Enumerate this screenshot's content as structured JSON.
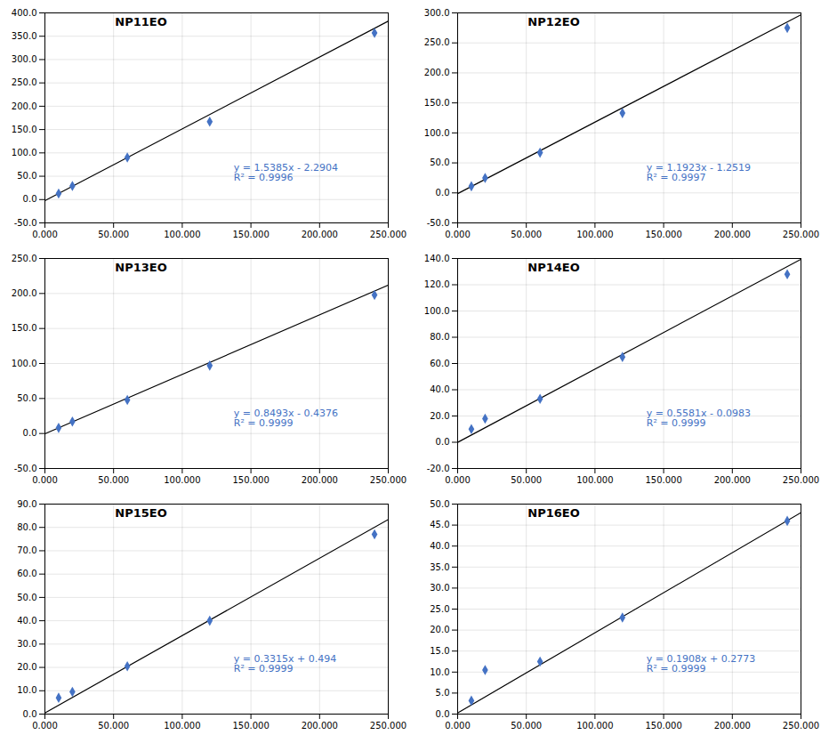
{
  "chart_data": [
    {
      "type": "scatter",
      "title": "NP11EO",
      "grid": true,
      "xlim": [
        0,
        250
      ],
      "xticks": [
        {
          "value": 0,
          "label": "0.000"
        },
        {
          "value": 50,
          "label": "50.000"
        },
        {
          "value": 100,
          "label": "100.000"
        },
        {
          "value": 150,
          "label": "150.000"
        },
        {
          "value": 200,
          "label": "200.000"
        },
        {
          "value": 250,
          "label": "250.000"
        }
      ],
      "ylim": [
        -50,
        400
      ],
      "yticks": [
        {
          "value": -50,
          "label": "-50.0"
        },
        {
          "value": 0,
          "label": "0.0"
        },
        {
          "value": 50,
          "label": "50.0"
        },
        {
          "value": 100,
          "label": "100.0"
        },
        {
          "value": 150,
          "label": "150.0"
        },
        {
          "value": 200,
          "label": "200.0"
        },
        {
          "value": 250,
          "label": "250.0"
        },
        {
          "value": 300,
          "label": "300.0"
        },
        {
          "value": 350,
          "label": "350.0"
        },
        {
          "value": 400,
          "label": "400.0"
        }
      ],
      "annotations": [
        "y = 1.5385x - 2.2904",
        "R² = 0.9996"
      ],
      "series": [
        {
          "type": "line",
          "color": "#000000",
          "line_style": "solid",
          "x": [
            0,
            250
          ],
          "values": [
            -2.2904,
            382.3346
          ]
        },
        {
          "type": "scatter",
          "color": "#4472C4",
          "marker": "diamond",
          "x": [
            10,
            20,
            60,
            120,
            240
          ],
          "values": [
            13,
            29,
            90,
            167,
            357
          ]
        }
      ]
    },
    {
      "type": "scatter",
      "title": "NP12EO",
      "grid": true,
      "xlim": [
        0,
        250
      ],
      "xticks": [
        {
          "value": 0,
          "label": "0.000"
        },
        {
          "value": 50,
          "label": "50.000"
        },
        {
          "value": 100,
          "label": "100.000"
        },
        {
          "value": 150,
          "label": "150.000"
        },
        {
          "value": 200,
          "label": "200.000"
        },
        {
          "value": 250,
          "label": "250.000"
        }
      ],
      "ylim": [
        -50,
        300
      ],
      "yticks": [
        {
          "value": -50,
          "label": "-50.0"
        },
        {
          "value": 0,
          "label": "0.0"
        },
        {
          "value": 50,
          "label": "50.0"
        },
        {
          "value": 100,
          "label": "100.0"
        },
        {
          "value": 150,
          "label": "150.0"
        },
        {
          "value": 200,
          "label": "200.0"
        },
        {
          "value": 250,
          "label": "250.0"
        },
        {
          "value": 300,
          "label": "300.0"
        }
      ],
      "annotations": [
        "y = 1.1923x - 1.2519",
        "R² = 0.9997"
      ],
      "series": [
        {
          "type": "line",
          "color": "#000000",
          "line_style": "solid",
          "x": [
            0,
            250
          ],
          "values": [
            -1.2519,
            296.8231
          ]
        },
        {
          "type": "scatter",
          "color": "#4472C4",
          "marker": "diamond",
          "x": [
            10,
            20,
            60,
            120,
            240
          ],
          "values": [
            11,
            25,
            67,
            133,
            275
          ]
        }
      ]
    },
    {
      "type": "scatter",
      "title": "NP13EO",
      "grid": true,
      "xlim": [
        0,
        250
      ],
      "xticks": [
        {
          "value": 0,
          "label": "0.000"
        },
        {
          "value": 50,
          "label": "50.000"
        },
        {
          "value": 100,
          "label": "100.000"
        },
        {
          "value": 150,
          "label": "150.000"
        },
        {
          "value": 200,
          "label": "200.000"
        },
        {
          "value": 250,
          "label": "250.000"
        }
      ],
      "ylim": [
        -50,
        250
      ],
      "yticks": [
        {
          "value": -50,
          "label": "-50.0"
        },
        {
          "value": 0,
          "label": "0.0"
        },
        {
          "value": 50,
          "label": "50.0"
        },
        {
          "value": 100,
          "label": "100.0"
        },
        {
          "value": 150,
          "label": "150.0"
        },
        {
          "value": 200,
          "label": "200.0"
        },
        {
          "value": 250,
          "label": "250.0"
        }
      ],
      "annotations": [
        "y = 0.8493x - 0.4376",
        "R² = 0.9999"
      ],
      "series": [
        {
          "type": "line",
          "color": "#000000",
          "line_style": "solid",
          "x": [
            0,
            250
          ],
          "values": [
            -0.4376,
            211.8874
          ]
        },
        {
          "type": "scatter",
          "color": "#4472C4",
          "marker": "diamond",
          "x": [
            10,
            20,
            60,
            120,
            240
          ],
          "values": [
            8,
            17,
            48,
            97,
            198
          ]
        }
      ]
    },
    {
      "type": "scatter",
      "title": "NP14EO",
      "grid": true,
      "xlim": [
        0,
        250
      ],
      "xticks": [
        {
          "value": 0,
          "label": "0.000"
        },
        {
          "value": 50,
          "label": "50.000"
        },
        {
          "value": 100,
          "label": "100.000"
        },
        {
          "value": 150,
          "label": "150.000"
        },
        {
          "value": 200,
          "label": "200.000"
        },
        {
          "value": 250,
          "label": "250.000"
        }
      ],
      "ylim": [
        -20,
        140
      ],
      "yticks": [
        {
          "value": -20,
          "label": "-20.0"
        },
        {
          "value": 0,
          "label": "0.0"
        },
        {
          "value": 20,
          "label": "20.0"
        },
        {
          "value": 40,
          "label": "40.0"
        },
        {
          "value": 60,
          "label": "60.0"
        },
        {
          "value": 80,
          "label": "80.0"
        },
        {
          "value": 100,
          "label": "100.0"
        },
        {
          "value": 120,
          "label": "120.0"
        },
        {
          "value": 140,
          "label": "140.0"
        }
      ],
      "annotations": [
        "y = 0.5581x - 0.0983",
        "R² = 0.9999"
      ],
      "series": [
        {
          "type": "line",
          "color": "#000000",
          "line_style": "solid",
          "x": [
            0,
            250
          ],
          "values": [
            -0.0983,
            139.4267
          ]
        },
        {
          "type": "scatter",
          "color": "#4472C4",
          "marker": "diamond",
          "x": [
            10,
            20,
            60,
            120,
            240
          ],
          "values": [
            10,
            18,
            33,
            65,
            128
          ]
        }
      ]
    },
    {
      "type": "scatter",
      "title": "NP15EO",
      "grid": true,
      "xlim": [
        0,
        250
      ],
      "xticks": [
        {
          "value": 0,
          "label": "0.000"
        },
        {
          "value": 50,
          "label": "50.000"
        },
        {
          "value": 100,
          "label": "100.000"
        },
        {
          "value": 150,
          "label": "150.000"
        },
        {
          "value": 200,
          "label": "200.000"
        },
        {
          "value": 250,
          "label": "250.000"
        }
      ],
      "ylim": [
        0,
        90
      ],
      "yticks": [
        {
          "value": 0,
          "label": "0.0"
        },
        {
          "value": 10,
          "label": "10.0"
        },
        {
          "value": 20,
          "label": "20.0"
        },
        {
          "value": 30,
          "label": "30.0"
        },
        {
          "value": 40,
          "label": "40.0"
        },
        {
          "value": 50,
          "label": "50.0"
        },
        {
          "value": 60,
          "label": "60.0"
        },
        {
          "value": 70,
          "label": "70.0"
        },
        {
          "value": 80,
          "label": "80.0"
        },
        {
          "value": 90,
          "label": "90.0"
        }
      ],
      "annotations": [
        "y = 0.3315x + 0.494",
        "R² = 0.9999"
      ],
      "series": [
        {
          "type": "line",
          "color": "#000000",
          "line_style": "solid",
          "x": [
            0,
            250
          ],
          "values": [
            0.494,
            83.369
          ]
        },
        {
          "type": "scatter",
          "color": "#4472C4",
          "marker": "diamond",
          "x": [
            10,
            20,
            60,
            120,
            240
          ],
          "values": [
            7,
            9.5,
            20.5,
            40,
            77
          ]
        }
      ]
    },
    {
      "type": "scatter",
      "title": "NP16EO",
      "grid": true,
      "xlim": [
        0,
        250
      ],
      "xticks": [
        {
          "value": 0,
          "label": "0.000"
        },
        {
          "value": 50,
          "label": "50.000"
        },
        {
          "value": 100,
          "label": "100.000"
        },
        {
          "value": 150,
          "label": "150.000"
        },
        {
          "value": 200,
          "label": "200.000"
        },
        {
          "value": 250,
          "label": "250.000"
        }
      ],
      "ylim": [
        0,
        50
      ],
      "yticks": [
        {
          "value": 0,
          "label": "0.0"
        },
        {
          "value": 5,
          "label": "5.0"
        },
        {
          "value": 10,
          "label": "10.0"
        },
        {
          "value": 15,
          "label": "15.0"
        },
        {
          "value": 20,
          "label": "20.0"
        },
        {
          "value": 25,
          "label": "25.0"
        },
        {
          "value": 30,
          "label": "30.0"
        },
        {
          "value": 35,
          "label": "35.0"
        },
        {
          "value": 40,
          "label": "40.0"
        },
        {
          "value": 45,
          "label": "45.0"
        },
        {
          "value": 50,
          "label": "50.0"
        }
      ],
      "annotations": [
        "y = 0.1908x + 0.2773",
        "R² = 0.9999"
      ],
      "series": [
        {
          "type": "line",
          "color": "#000000",
          "line_style": "solid",
          "x": [
            0,
            250
          ],
          "values": [
            0.2773,
            47.9773
          ]
        },
        {
          "type": "scatter",
          "color": "#4472C4",
          "marker": "diamond",
          "x": [
            10,
            20,
            60,
            120,
            240
          ],
          "values": [
            3.2,
            10.5,
            12.5,
            23,
            46
          ]
        }
      ]
    }
  ]
}
